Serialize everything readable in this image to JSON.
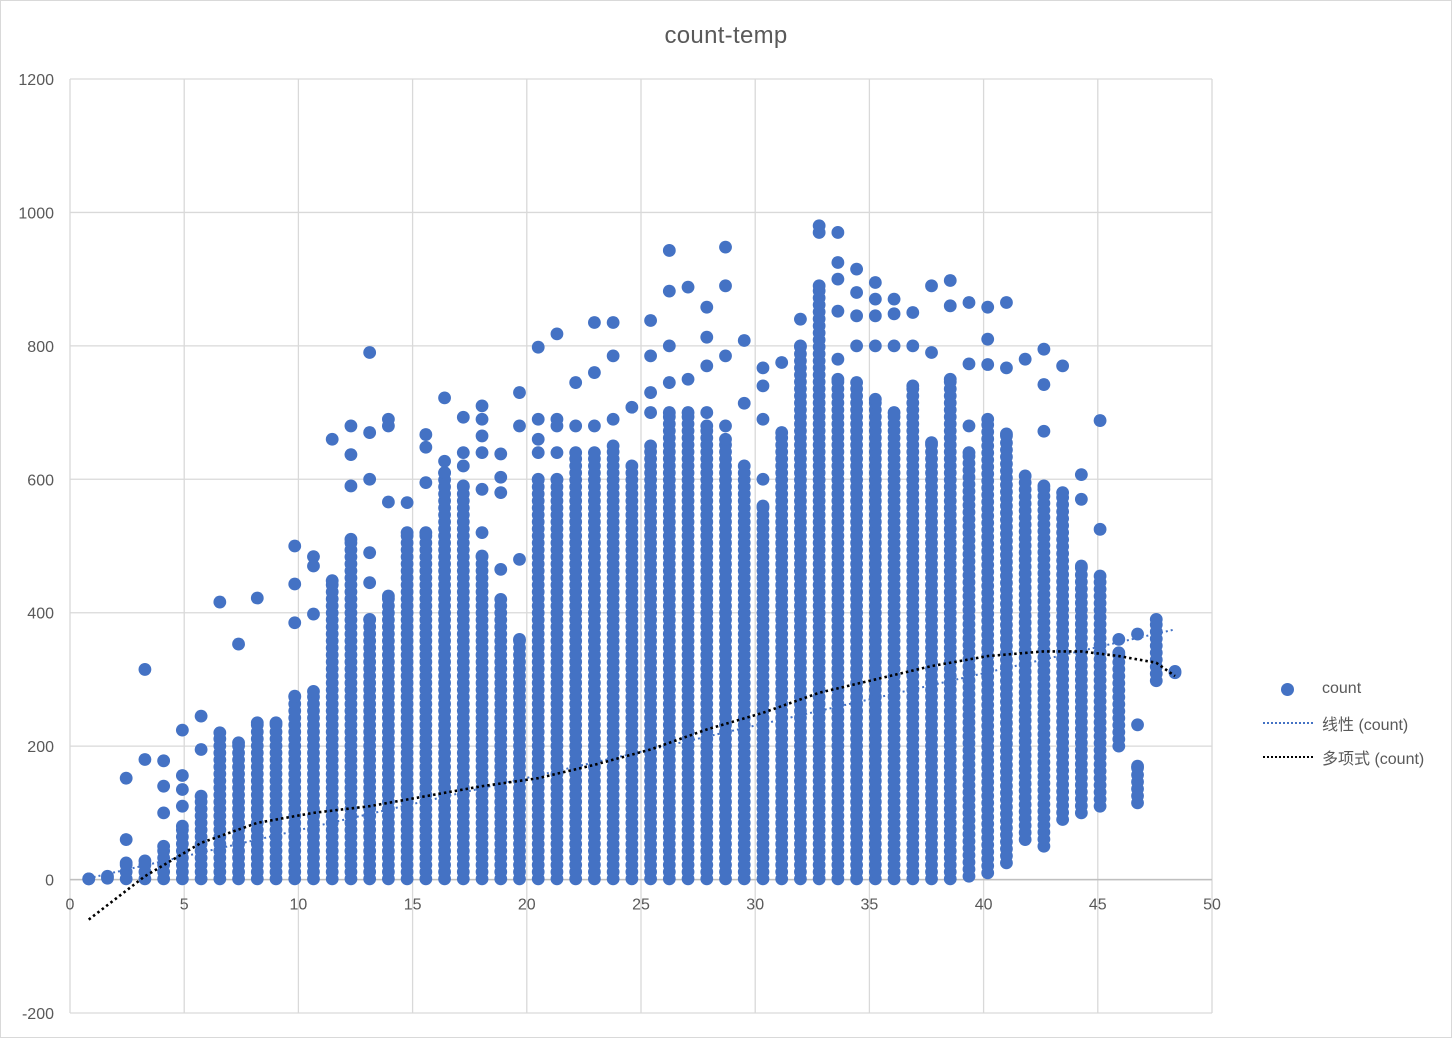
{
  "chart_data": {
    "type": "scatter",
    "title": "count-temp",
    "xlabel": "",
    "ylabel": "",
    "xlim": [
      0,
      50
    ],
    "ylim": [
      -200,
      1200
    ],
    "x_ticks": [
      0,
      5,
      10,
      15,
      20,
      25,
      30,
      35,
      40,
      45,
      50
    ],
    "y_ticks": [
      -200,
      0,
      200,
      400,
      600,
      800,
      1000,
      1200
    ],
    "grid": true,
    "legend_position": "right",
    "colors": {
      "series": "#4472c4",
      "linear_trend": "#4472c4",
      "poly_trend": "#000000",
      "grid": "#d9d9d9",
      "axis": "#bfbfbf"
    },
    "series": [
      {
        "name": "count",
        "type": "scatter",
        "columns": [
          {
            "x": 0.82,
            "min": 1,
            "max": 1,
            "outliers": []
          },
          {
            "x": 1.64,
            "min": 2,
            "max": 5,
            "outliers": []
          },
          {
            "x": 2.46,
            "min": 1,
            "max": 25,
            "outliers": [
              60,
              152
            ]
          },
          {
            "x": 3.28,
            "min": 1,
            "max": 28,
            "outliers": [
              180,
              315
            ]
          },
          {
            "x": 4.1,
            "min": 1,
            "max": 50,
            "outliers": [
              100,
              140,
              178
            ]
          },
          {
            "x": 4.92,
            "min": 1,
            "max": 80,
            "outliers": [
              110,
              135,
              156,
              224
            ]
          },
          {
            "x": 5.74,
            "min": 1,
            "max": 125,
            "outliers": [
              195,
              245
            ]
          },
          {
            "x": 6.56,
            "min": 1,
            "max": 220,
            "outliers": [
              416
            ]
          },
          {
            "x": 7.38,
            "min": 1,
            "max": 205,
            "outliers": [
              353
            ]
          },
          {
            "x": 8.2,
            "min": 1,
            "max": 235,
            "outliers": [
              422
            ]
          },
          {
            "x": 9.02,
            "min": 1,
            "max": 235,
            "outliers": []
          },
          {
            "x": 9.84,
            "min": 1,
            "max": 275,
            "outliers": [
              385,
              443,
              500
            ]
          },
          {
            "x": 10.66,
            "min": 1,
            "max": 282,
            "outliers": [
              398,
              470,
              484
            ]
          },
          {
            "x": 11.48,
            "min": 1,
            "max": 448,
            "outliers": [
              660
            ]
          },
          {
            "x": 12.3,
            "min": 1,
            "max": 510,
            "outliers": [
              590,
              637,
              680
            ]
          },
          {
            "x": 13.12,
            "min": 1,
            "max": 390,
            "outliers": [
              445,
              490,
              600,
              670,
              790
            ]
          },
          {
            "x": 13.94,
            "min": 1,
            "max": 425,
            "outliers": [
              566,
              680,
              690
            ]
          },
          {
            "x": 14.76,
            "min": 1,
            "max": 520,
            "outliers": [
              565
            ]
          },
          {
            "x": 15.58,
            "min": 1,
            "max": 520,
            "outliers": [
              595,
              648,
              667
            ]
          },
          {
            "x": 16.4,
            "min": 1,
            "max": 610,
            "outliers": [
              627,
              722
            ]
          },
          {
            "x": 17.22,
            "min": 1,
            "max": 590,
            "outliers": [
              620,
              640,
              693
            ]
          },
          {
            "x": 18.04,
            "min": 1,
            "max": 485,
            "outliers": [
              520,
              585,
              640,
              665,
              690,
              710
            ]
          },
          {
            "x": 18.86,
            "min": 1,
            "max": 420,
            "outliers": [
              465,
              580,
              603,
              638
            ]
          },
          {
            "x": 19.68,
            "min": 1,
            "max": 360,
            "outliers": [
              480,
              680,
              730
            ]
          },
          {
            "x": 20.5,
            "min": 1,
            "max": 600,
            "outliers": [
              640,
              660,
              690,
              798
            ]
          },
          {
            "x": 21.32,
            "min": 1,
            "max": 600,
            "outliers": [
              640,
              680,
              690,
              818
            ]
          },
          {
            "x": 22.14,
            "min": 1,
            "max": 640,
            "outliers": [
              680,
              745
            ]
          },
          {
            "x": 22.96,
            "min": 1,
            "max": 640,
            "outliers": [
              680,
              760,
              835
            ]
          },
          {
            "x": 23.78,
            "min": 1,
            "max": 650,
            "outliers": [
              690,
              785,
              835
            ]
          },
          {
            "x": 24.6,
            "min": 1,
            "max": 620,
            "outliers": [
              708
            ]
          },
          {
            "x": 25.42,
            "min": 1,
            "max": 650,
            "outliers": [
              700,
              730,
              785,
              838
            ]
          },
          {
            "x": 26.24,
            "min": 1,
            "max": 700,
            "outliers": [
              745,
              800,
              882,
              943
            ]
          },
          {
            "x": 27.06,
            "min": 1,
            "max": 700,
            "outliers": [
              750,
              888
            ]
          },
          {
            "x": 27.88,
            "min": 1,
            "max": 680,
            "outliers": [
              700,
              770,
              813,
              858
            ]
          },
          {
            "x": 28.7,
            "min": 1,
            "max": 660,
            "outliers": [
              680,
              785,
              890,
              948
            ]
          },
          {
            "x": 29.52,
            "min": 1,
            "max": 620,
            "outliers": [
              714,
              808
            ]
          },
          {
            "x": 30.34,
            "min": 1,
            "max": 560,
            "outliers": [
              600,
              690,
              740,
              767
            ]
          },
          {
            "x": 31.16,
            "min": 1,
            "max": 670,
            "outliers": [
              775
            ]
          },
          {
            "x": 31.98,
            "min": 1,
            "max": 800,
            "outliers": [
              840
            ]
          },
          {
            "x": 32.8,
            "min": 1,
            "max": 890,
            "outliers": [
              970,
              980
            ]
          },
          {
            "x": 33.62,
            "min": 1,
            "max": 750,
            "outliers": [
              780,
              852,
              900,
              925,
              970
            ]
          },
          {
            "x": 34.44,
            "min": 1,
            "max": 745,
            "outliers": [
              800,
              845,
              880,
              915
            ]
          },
          {
            "x": 35.26,
            "min": 1,
            "max": 720,
            "outliers": [
              800,
              845,
              870,
              895
            ]
          },
          {
            "x": 36.08,
            "min": 1,
            "max": 700,
            "outliers": [
              800,
              848,
              870
            ]
          },
          {
            "x": 36.9,
            "min": 1,
            "max": 740,
            "outliers": [
              800,
              850
            ]
          },
          {
            "x": 37.72,
            "min": 1,
            "max": 655,
            "outliers": [
              790,
              890
            ]
          },
          {
            "x": 38.54,
            "min": 1,
            "max": 750,
            "outliers": [
              860,
              898
            ]
          },
          {
            "x": 39.36,
            "min": 5,
            "max": 640,
            "outliers": [
              680,
              773,
              865
            ]
          },
          {
            "x": 40.18,
            "min": 10,
            "max": 690,
            "outliers": [
              772,
              810,
              858
            ]
          },
          {
            "x": 41.0,
            "min": 25,
            "max": 668,
            "outliers": [
              767,
              865
            ]
          },
          {
            "x": 41.82,
            "min": 60,
            "max": 605,
            "outliers": [
              780
            ]
          },
          {
            "x": 42.64,
            "min": 50,
            "max": 590,
            "outliers": [
              672,
              742,
              795
            ]
          },
          {
            "x": 43.46,
            "min": 90,
            "max": 580,
            "outliers": [
              770
            ]
          },
          {
            "x": 44.28,
            "min": 100,
            "max": 470,
            "outliers": [
              570,
              607
            ]
          },
          {
            "x": 45.1,
            "min": 110,
            "max": 455,
            "outliers": [
              525,
              688
            ]
          },
          {
            "x": 45.92,
            "min": 200,
            "max": 340,
            "outliers": [
              360
            ]
          },
          {
            "x": 46.74,
            "min": 115,
            "max": 170,
            "outliers": [
              232,
              368
            ]
          },
          {
            "x": 47.56,
            "min": 298,
            "max": 390,
            "outliers": []
          },
          {
            "x": 48.38,
            "min": 310,
            "max": 312,
            "outliers": []
          }
        ]
      },
      {
        "name": "线性 (count)",
        "type": "line",
        "style": "dotted",
        "x": [
          0.82,
          48.38
        ],
        "y": [
          2,
          375
        ]
      },
      {
        "name": "多项式 (count)",
        "type": "line",
        "style": "dotted",
        "x": [
          0.82,
          3.28,
          5.74,
          8.2,
          10.66,
          13.12,
          15.58,
          18.04,
          20.5,
          22.96,
          25.42,
          27.88,
          30.34,
          32.8,
          35.26,
          37.72,
          40.18,
          42.64,
          44.28,
          45.92,
          47.56,
          48.38
        ],
        "y": [
          -60,
          5,
          55,
          85,
          100,
          110,
          125,
          140,
          152,
          172,
          195,
          225,
          250,
          280,
          300,
          320,
          335,
          342,
          342,
          335,
          325,
          305
        ]
      }
    ],
    "legend": [
      {
        "label": "count",
        "marker": "dot"
      },
      {
        "label": "线性 (count)",
        "marker": "dotted-blue"
      },
      {
        "label": "多项式 (count)",
        "marker": "dotted-black"
      }
    ]
  }
}
